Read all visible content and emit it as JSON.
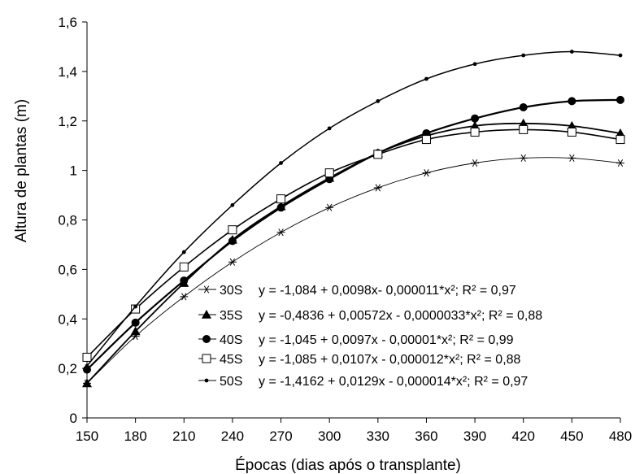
{
  "chart_data": {
    "type": "line",
    "title": "",
    "xlabel": "Épocas (dias após o transplante)",
    "ylabel": "Altura de plantas (m)",
    "x": [
      150,
      180,
      210,
      240,
      270,
      300,
      330,
      360,
      390,
      420,
      450,
      480
    ],
    "xlim": [
      150,
      480
    ],
    "ylim": [
      0,
      1.6
    ],
    "y_ticks": [
      0,
      0.2,
      0.4,
      0.6,
      0.8,
      1.0,
      1.2,
      1.4,
      1.6
    ],
    "y_tick_labels": [
      "0",
      "0,2",
      "0,4",
      "0,6",
      "0,8",
      "1",
      "1,2",
      "1,4",
      "1,6"
    ],
    "x_tick_labels": [
      "150",
      "180",
      "210",
      "240",
      "270",
      "300",
      "330",
      "360",
      "390",
      "420",
      "450",
      "480"
    ],
    "grid": false,
    "legend_position": "bottom-right",
    "series": [
      {
        "name": "30S",
        "marker": "star",
        "equation": "y = -1,084 + 0,0098x- 0,000011*x²; R² = 0,97",
        "values": [
          0.14,
          0.33,
          0.49,
          0.63,
          0.75,
          0.85,
          0.93,
          0.99,
          1.03,
          1.05,
          1.05,
          1.03
        ]
      },
      {
        "name": "35S",
        "marker": "triangle",
        "equation": "y = -0,4836 + 0,00572x - 0,0000033*x²;  R² = 0,88",
        "values": [
          0.14,
          0.35,
          0.545,
          0.72,
          0.855,
          0.97,
          1.07,
          1.14,
          1.18,
          1.19,
          1.18,
          1.15
        ]
      },
      {
        "name": "40S",
        "marker": "circle-filled",
        "equation": "y = -1,045 +  0,0097x - 0,00001*x²; R² = 0,99",
        "values": [
          0.195,
          0.385,
          0.555,
          0.715,
          0.85,
          0.965,
          1.07,
          1.15,
          1.21,
          1.255,
          1.28,
          1.285
        ]
      },
      {
        "name": "45S",
        "marker": "square-open",
        "equation": "y = -1,085 +  0,0107x - 0,000012*x²; R² = 0,88",
        "values": [
          0.245,
          0.44,
          0.61,
          0.76,
          0.885,
          0.99,
          1.065,
          1.125,
          1.155,
          1.165,
          1.155,
          1.125
        ]
      },
      {
        "name": "50S",
        "marker": "dot",
        "equation": "y = -1,4162 + 0,0129x - 0,000014*x²; R² = 0,97",
        "values": [
          0.21,
          0.45,
          0.67,
          0.86,
          1.03,
          1.17,
          1.28,
          1.37,
          1.43,
          1.465,
          1.48,
          1.465
        ]
      }
    ]
  }
}
